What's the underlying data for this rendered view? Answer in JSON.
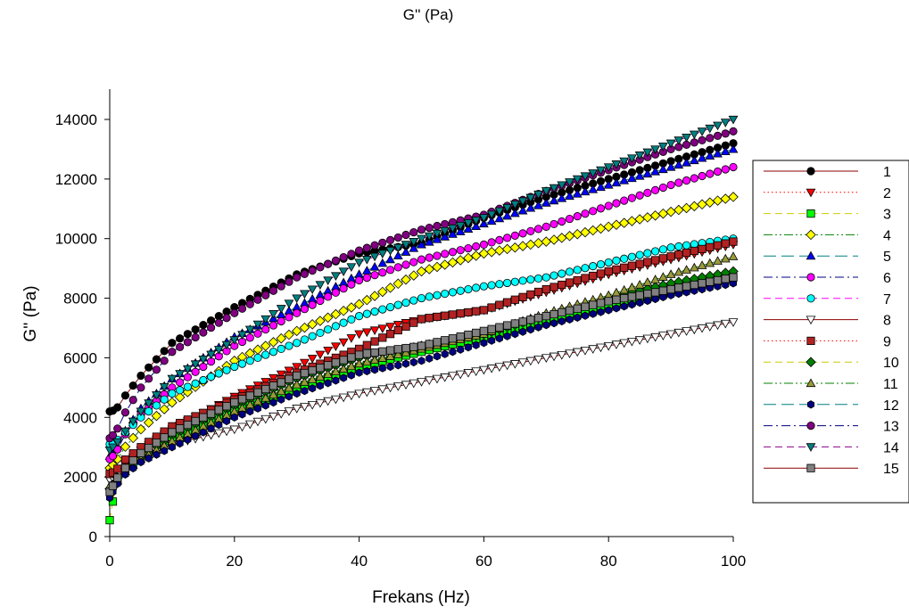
{
  "chart_data": {
    "type": "line",
    "title": "G'' (Pa)",
    "xlabel": "Frekans (Hz)",
    "ylabel": "G'' (Pa)",
    "xlim": [
      0,
      100
    ],
    "ylim": [
      0,
      15000
    ],
    "xticks": [
      "0",
      "20",
      "40",
      "60",
      "80",
      "100"
    ],
    "yticks": [
      "0",
      "2000",
      "4000",
      "6000",
      "8000",
      "10000",
      "12000",
      "14000"
    ],
    "grid": false,
    "legend_position": "right",
    "x_sample": [
      0,
      1,
      2,
      5,
      10,
      20,
      30,
      40,
      50,
      60,
      70,
      80,
      90,
      100
    ],
    "series": [
      {
        "name": "1",
        "marker": "circle",
        "line_color": "#8b0000",
        "line_style": "solid",
        "fill": "#000000",
        "values": [
          4200,
          4250,
          4600,
          5400,
          6500,
          7700,
          8800,
          9500,
          9850,
          10700,
          11400,
          12000,
          12600,
          13200
        ]
      },
      {
        "name": "2",
        "marker": "triangle-down",
        "line_color": "#ff0000",
        "line_style": "dotted",
        "fill": "#ff0000",
        "values": [
          1900,
          1950,
          2300,
          2900,
          3600,
          4700,
          5700,
          6800,
          7300,
          7600,
          8200,
          8800,
          9300,
          9800
        ]
      },
      {
        "name": "3",
        "marker": "square",
        "line_color": "#cccc00",
        "line_style": "dashed",
        "fill": "#00ff00",
        "values": [
          550,
          1800,
          2100,
          2700,
          3300,
          4200,
          5000,
          5700,
          6200,
          6700,
          7200,
          7700,
          8200,
          8700
        ]
      },
      {
        "name": "4",
        "marker": "diamond",
        "line_color": "#008000",
        "line_style": "dash-dot-dot",
        "fill": "#ffff00",
        "values": [
          2300,
          2500,
          2900,
          3600,
          4500,
          5900,
          6900,
          7800,
          8900,
          9500,
          9900,
          10400,
          10900,
          11400
        ]
      },
      {
        "name": "5",
        "marker": "triangle-up",
        "line_color": "#008080",
        "line_style": "long-dash",
        "fill": "#0000ff",
        "values": [
          2700,
          2900,
          3400,
          4300,
          5300,
          6700,
          7700,
          8800,
          9800,
          10500,
          11200,
          11800,
          12400,
          13000
        ]
      },
      {
        "name": "6",
        "marker": "circle",
        "line_color": "#000080",
        "line_style": "dash-dot",
        "fill": "#ff00ff",
        "values": [
          2600,
          2800,
          3300,
          4100,
          5000,
          6400,
          7500,
          8600,
          9300,
          9800,
          10400,
          11100,
          11800,
          12400
        ]
      },
      {
        "name": "7",
        "marker": "circle",
        "line_color": "#ff00ff",
        "line_style": "dashed",
        "fill": "#00ffff",
        "values": [
          3100,
          3200,
          3400,
          4000,
          4800,
          5700,
          6500,
          7400,
          8000,
          8400,
          8700,
          9200,
          9700,
          10000
        ]
      },
      {
        "name": "8",
        "marker": "triangle-down",
        "line_color": "#8b0000",
        "line_style": "solid",
        "fill": "#ffffff",
        "values": [
          1900,
          2000,
          2200,
          2600,
          3100,
          3600,
          4300,
          4800,
          5200,
          5600,
          6000,
          6400,
          6800,
          7200
        ]
      },
      {
        "name": "9",
        "marker": "square",
        "line_color": "#ff0000",
        "line_style": "dotted",
        "fill": "#b22222",
        "values": [
          2100,
          2200,
          2500,
          3000,
          3700,
          4600,
          5500,
          6300,
          7300,
          7600,
          8300,
          8900,
          9400,
          9900
        ]
      },
      {
        "name": "10",
        "marker": "diamond",
        "line_color": "#cccc00",
        "line_style": "dashed",
        "fill": "#008000",
        "values": [
          1600,
          1900,
          2200,
          2700,
          3400,
          4400,
          5300,
          6000,
          6400,
          6800,
          7400,
          8000,
          8500,
          8900
        ]
      },
      {
        "name": "11",
        "marker": "triangle-up",
        "line_color": "#008000",
        "line_style": "dash-dot-dot",
        "fill": "#9a9a3a",
        "values": [
          1700,
          1800,
          2100,
          2600,
          3200,
          4200,
          5100,
          5800,
          6300,
          6800,
          7500,
          8100,
          8800,
          9400
        ]
      },
      {
        "name": "12",
        "marker": "hexagon",
        "line_color": "#008080",
        "line_style": "long-dash",
        "fill": "#000080",
        "values": [
          1300,
          1700,
          2000,
          2500,
          3000,
          4000,
          4800,
          5500,
          5900,
          6500,
          7100,
          7600,
          8100,
          8500
        ]
      },
      {
        "name": "13",
        "marker": "circle",
        "line_color": "#000080",
        "line_style": "dash-dot",
        "fill": "#800080",
        "values": [
          3300,
          3500,
          4000,
          5000,
          6200,
          7500,
          8700,
          9600,
          10300,
          10800,
          11600,
          12300,
          13000,
          13600
        ]
      },
      {
        "name": "14",
        "marker": "triangle-down",
        "line_color": "#8b008b",
        "line_style": "dashed",
        "fill": "#008080",
        "values": [
          2900,
          3100,
          3400,
          4200,
          5300,
          6600,
          8000,
          9200,
          10000,
          10700,
          11600,
          12400,
          13200,
          14000
        ]
      },
      {
        "name": "15",
        "marker": "square",
        "line_color": "#8b0000",
        "line_style": "solid",
        "fill": "#808080",
        "values": [
          1500,
          1900,
          2200,
          2800,
          3500,
          4500,
          5400,
          6100,
          6400,
          6900,
          7400,
          7900,
          8300,
          8700
        ]
      }
    ]
  }
}
